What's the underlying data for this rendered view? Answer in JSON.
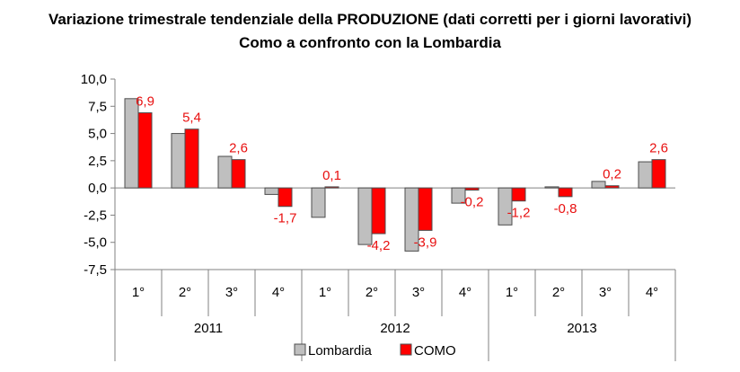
{
  "chart_data": {
    "type": "bar",
    "title": "Variazione trimestrale tendenziale della PRODUZIONE (dati corretti per i giorni lavorativi)",
    "subtitle": "Como a confronto con la Lombardia",
    "ylim": [
      -7.5,
      10.0
    ],
    "ytick_step": 2.5,
    "ytick_labels": [
      "10,0",
      "7,5",
      "5,0",
      "2,5",
      "0,0",
      "-2,5",
      "-5,0",
      "-7,5"
    ],
    "categories": [
      "1°",
      "2°",
      "3°",
      "4°",
      "1°",
      "2°",
      "3°",
      "4°",
      "1°",
      "2°",
      "3°",
      "4°"
    ],
    "years": [
      {
        "label": "2011",
        "span": 4
      },
      {
        "label": "2012",
        "span": 4
      },
      {
        "label": "2013",
        "span": 4
      }
    ],
    "series": [
      {
        "name": "Lombardia",
        "color": "#bfbfbf",
        "values": [
          8.2,
          5.0,
          2.9,
          -0.6,
          -2.7,
          -5.2,
          -5.8,
          -1.4,
          -3.4,
          0.1,
          0.6,
          2.4
        ]
      },
      {
        "name": "COMO",
        "color": "#ff0000",
        "values": [
          6.9,
          5.4,
          2.6,
          -1.7,
          0.1,
          -4.2,
          -3.9,
          -0.2,
          -1.2,
          -0.8,
          0.2,
          2.6
        ],
        "data_labels": [
          "6,9",
          "5,4",
          "2,6",
          "-1,7",
          "0,1",
          "-4,2",
          "-3,9",
          "-0,2",
          "-1,2",
          "-0,8",
          "0,2",
          "2,6"
        ]
      }
    ],
    "grid": false,
    "legend": "bottom"
  }
}
